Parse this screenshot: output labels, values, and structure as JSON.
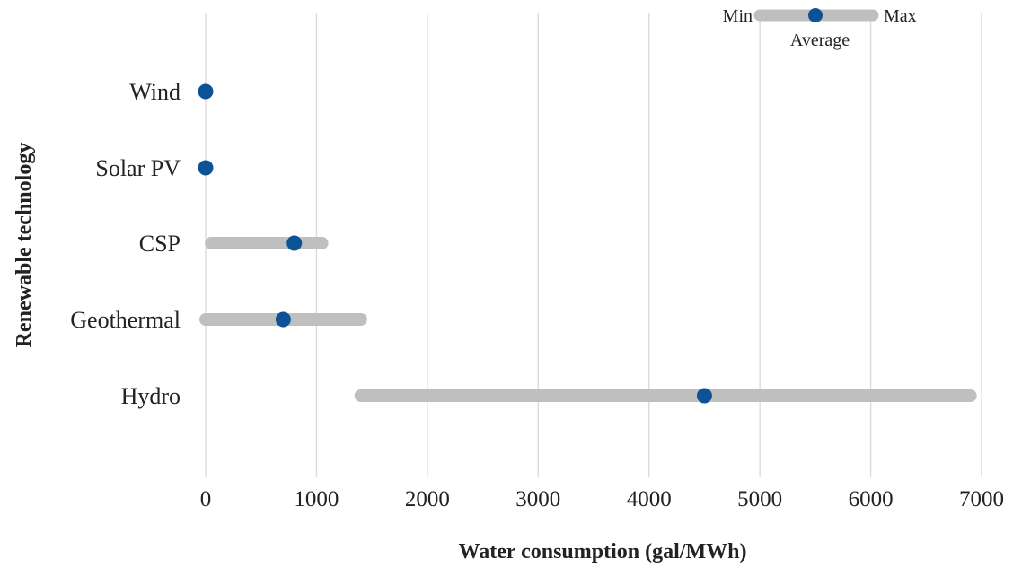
{
  "chart_data": {
    "type": "range-dot",
    "xlabel": "Water consumption (gal/MWh)",
    "ylabel": "Renewable technology",
    "xlim": [
      0,
      7000
    ],
    "xticks": [
      0,
      1000,
      2000,
      3000,
      4000,
      5000,
      6000,
      7000
    ],
    "grid": "vertical",
    "legend_position": "top-right",
    "legend": {
      "min_label": "Min",
      "max_label": "Max",
      "avg_label": "Average"
    },
    "series": [
      {
        "name": "Average",
        "color": "#0b5394"
      },
      {
        "name": "Min–Max range",
        "color": "#bfbfbf"
      }
    ],
    "categories": [
      "Wind",
      "Solar PV",
      "CSP",
      "Geothermal",
      "Hydro"
    ],
    "min": [
      0,
      0,
      50,
      0,
      1400
    ],
    "max": [
      0,
      0,
      1050,
      1400,
      6900
    ],
    "average": [
      0,
      0,
      800,
      700,
      4500
    ]
  }
}
